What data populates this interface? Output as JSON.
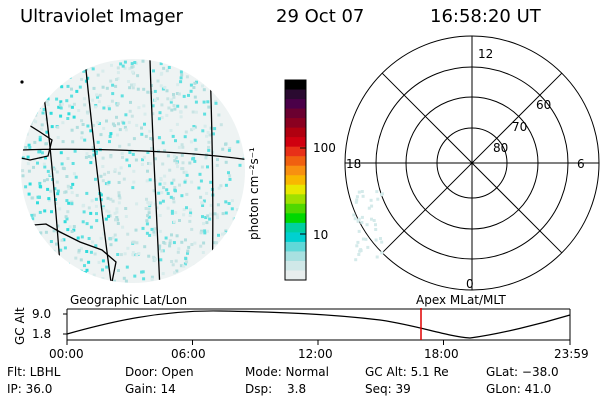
{
  "header": {
    "instrument": "Ultraviolet Imager",
    "date": "29 Oct 07",
    "time": "16:58:20 UT"
  },
  "colorbar": {
    "unit_label": "photon cm⁻²s⁻¹",
    "ticks": [
      "100",
      "10"
    ],
    "colors": [
      "#000000",
      "#2a0a30",
      "#4a0048",
      "#6a0030",
      "#8a0020",
      "#b00010",
      "#d00010",
      "#e83018",
      "#f06010",
      "#f89010",
      "#f8b800",
      "#e8e800",
      "#a0e000",
      "#50d800",
      "#00d800",
      "#00d0a0",
      "#00d0d0",
      "#60d8d8",
      "#a8e0e0",
      "#d0e8e8",
      "#e8eeee"
    ]
  },
  "polar_plot": {
    "clock_labels": {
      "top": "12",
      "left": "18",
      "right": "6",
      "bottom": "0"
    },
    "lat_labels": [
      "60",
      "70",
      "80"
    ]
  },
  "timeline": {
    "y_axis_label": "GC Alt",
    "y_ticks": [
      "9.0",
      "1.8"
    ],
    "left_caption": "Geographic Lat/Lon",
    "right_caption": "Apex  MLat/MLT",
    "x_ticks": [
      "00:00",
      "06:00",
      "12:00",
      "18:00",
      "23:59"
    ],
    "current_marker_time": "16:58"
  },
  "status": {
    "flt": "Flt: LBHL",
    "door": "Door: Open",
    "mode": "Mode: Normal",
    "gc_alt": "GC Alt: 5.1 Re",
    "glat": "GLat: −38.0",
    "ip": "IP: 36.0",
    "gain": "Gain: 14",
    "dsp_label": "Dsp:",
    "dsp_value": "3.8",
    "seq": "Seq: 39",
    "glon": "GLon:  41.0"
  }
}
